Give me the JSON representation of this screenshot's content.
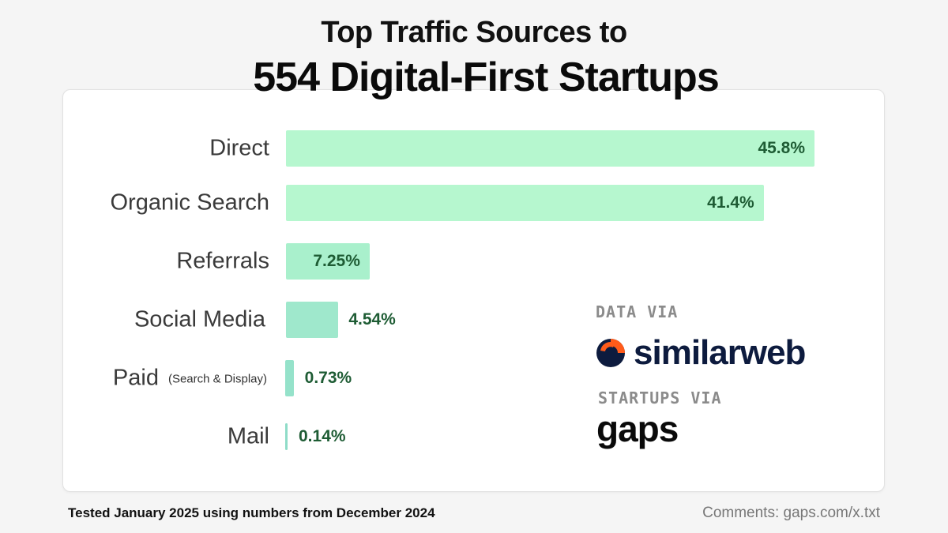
{
  "header": {
    "title_line1": "Top Traffic Sources to",
    "title_line2": "554 Digital-First Startups"
  },
  "chart_data": {
    "type": "bar",
    "orientation": "horizontal",
    "categories": [
      "Direct",
      "Organic Search",
      "Referrals",
      "Social Media",
      "Paid",
      "Mail"
    ],
    "category_sublabels": [
      "",
      "",
      "",
      "",
      "(Search & Display)",
      ""
    ],
    "values": [
      45.8,
      41.4,
      7.25,
      4.54,
      0.73,
      0.14
    ],
    "value_labels": [
      "45.8%",
      "41.4%",
      "7.25%",
      "4.54%",
      "0.73%",
      "0.14%"
    ],
    "title": "",
    "xlabel": "",
    "ylabel": "",
    "xlim": [
      0,
      45.8
    ],
    "grid": false,
    "bar_colors": [
      "#b6f7cf",
      "#b6f7cf",
      "#a9f0cc",
      "#9fe8cc",
      "#95e2ca",
      "#8fdcc8"
    ],
    "label_color": "#1e5c34"
  },
  "attribution": {
    "data_via": "DATA VIA",
    "data_source": "similarweb",
    "startups_via": "STARTUPS VIA",
    "startups_source": "gaps"
  },
  "footer": {
    "note": "Tested January 2025 using numbers from December 2024",
    "comments": "Comments: gaps.com/x.txt"
  }
}
